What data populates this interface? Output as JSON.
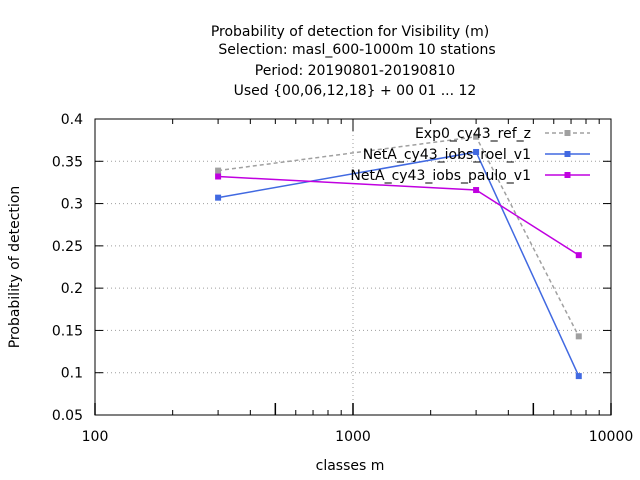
{
  "chart_data": {
    "type": "line",
    "title_lines": [
      "Probability of detection  for Visibility (m)",
      "Selection: masl_600-1000m     10 stations",
      "Period: 20190801-20190810",
      "Used {00,06,12,18} + 00 01 ... 12"
    ],
    "xlabel": "classes m",
    "ylabel": "Probability of detection",
    "x_scale": "log",
    "xlim": [
      100,
      10000
    ],
    "ylim": [
      0.05,
      0.4
    ],
    "x_ticks": [
      100,
      1000,
      10000
    ],
    "x_tick_labels": [
      "100",
      "1000",
      "10000"
    ],
    "y_ticks": [
      0.05,
      0.1,
      0.15,
      0.2,
      0.25,
      0.3,
      0.35,
      0.4
    ],
    "y_tick_labels": [
      "0.05",
      "0.1",
      "0.15",
      "0.2",
      "0.25",
      "0.3",
      "0.35",
      "0.4"
    ],
    "grid": true,
    "legend_position": "top-right",
    "series": [
      {
        "name": "Exp0_cy43_ref_z",
        "color": "#a0a0a0",
        "dashed": true,
        "x": [
          300,
          3000,
          7500
        ],
        "y": [
          0.339,
          0.379,
          0.143
        ]
      },
      {
        "name": "NetA_cy43_iobs_roel_v1",
        "color": "#4169e1",
        "dashed": false,
        "x": [
          300,
          3000,
          7500
        ],
        "y": [
          0.307,
          0.361,
          0.096
        ]
      },
      {
        "name": "NetA_cy43_iobs_paulo_v1",
        "color": "#c000e0",
        "dashed": false,
        "x": [
          300,
          3000,
          7500
        ],
        "y": [
          0.332,
          0.316,
          0.239
        ]
      }
    ]
  }
}
